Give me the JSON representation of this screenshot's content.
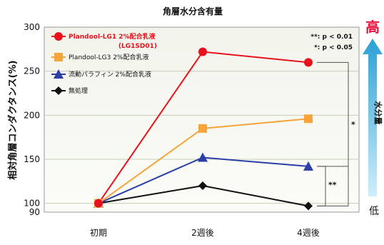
{
  "chart_data": {
    "type": "line",
    "title": "角層水分含有量",
    "ylabel": "相対角層コンダクタンス(%)",
    "xlabel": "",
    "categories": [
      "初期",
      "2週後",
      "4週後"
    ],
    "ylim": [
      90,
      300
    ],
    "yticks": [
      90,
      100,
      150,
      200,
      250,
      300
    ],
    "grid": "horizontal",
    "legend_position": "top-left",
    "series": [
      {
        "name": "Plandool-LG1 2%配合乳液",
        "name_sub": "(LG1SD01)",
        "values": [
          100,
          272,
          260
        ],
        "color": "#e8121c",
        "marker": "circle"
      },
      {
        "name": "Plandool-LG3 2%配合乳液",
        "values": [
          100,
          185,
          196
        ],
        "color": "#f7a53a",
        "marker": "square"
      },
      {
        "name": "流動パラフィン 2%配合乳液",
        "values": [
          100,
          152,
          142
        ],
        "color": "#2b3fa6",
        "marker": "triangle"
      },
      {
        "name": "無処理",
        "values": [
          100,
          120,
          97
        ],
        "color": "#111111",
        "marker": "diamond"
      }
    ],
    "significance": {
      "legend": [
        "**: p < 0.01",
        "*: p < 0.05"
      ],
      "brackets": [
        {
          "label": "*",
          "to_series": 1
        },
        {
          "label": "**",
          "to_series": 2
        }
      ]
    }
  },
  "side_indicator": {
    "high_label": "高",
    "low_label": "低",
    "arrow_label": "水分量",
    "colors": {
      "top": "#2aa0d6",
      "bottom": "#cfeefb"
    }
  }
}
